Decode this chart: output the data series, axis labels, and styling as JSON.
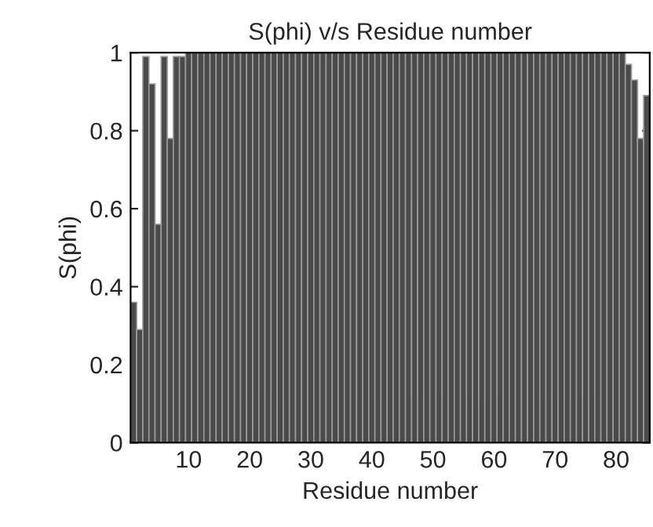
{
  "chart_data": {
    "type": "bar",
    "title": "S(phi) v/s Residue number",
    "xlabel": "Residue number",
    "ylabel": "S(phi)",
    "x": [
      1,
      2,
      3,
      4,
      5,
      6,
      7,
      8,
      9,
      10,
      11,
      12,
      13,
      14,
      15,
      16,
      17,
      18,
      19,
      20,
      21,
      22,
      23,
      24,
      25,
      26,
      27,
      28,
      29,
      30,
      31,
      32,
      33,
      34,
      35,
      36,
      37,
      38,
      39,
      40,
      41,
      42,
      43,
      44,
      45,
      46,
      47,
      48,
      49,
      50,
      51,
      52,
      53,
      54,
      55,
      56,
      57,
      58,
      59,
      60,
      61,
      62,
      63,
      64,
      65,
      66,
      67,
      68,
      69,
      70,
      71,
      72,
      73,
      74,
      75,
      76,
      77,
      78,
      79,
      80,
      81,
      82,
      83,
      84,
      85
    ],
    "values": [
      0.36,
      0.29,
      0.99,
      0.92,
      0.56,
      0.99,
      0.78,
      0.99,
      0.99,
      1,
      1,
      1,
      1,
      1,
      1,
      1,
      1,
      1,
      1,
      1,
      1,
      1,
      1,
      1,
      1,
      1,
      1,
      1,
      1,
      1,
      1,
      1,
      1,
      1,
      1,
      1,
      1,
      1,
      1,
      1,
      1,
      1,
      1,
      1,
      1,
      1,
      1,
      1,
      1,
      1,
      1,
      1,
      1,
      1,
      1,
      1,
      1,
      1,
      1,
      1,
      1,
      1,
      1,
      1,
      1,
      1,
      1,
      1,
      1,
      1,
      1,
      1,
      1,
      1,
      1,
      1,
      1,
      1,
      1,
      1,
      1,
      0.97,
      0.93,
      0.78,
      0.89
    ],
    "color": "#4a4a4a",
    "xlim": [
      0.5,
      85.5
    ],
    "xticks": [
      10,
      20,
      30,
      40,
      50,
      60,
      70,
      80
    ],
    "ylim": [
      0,
      1
    ],
    "yticks": [
      0,
      0.2,
      0.4,
      0.6,
      0.8,
      1
    ],
    "grid": false,
    "legend": false
  }
}
